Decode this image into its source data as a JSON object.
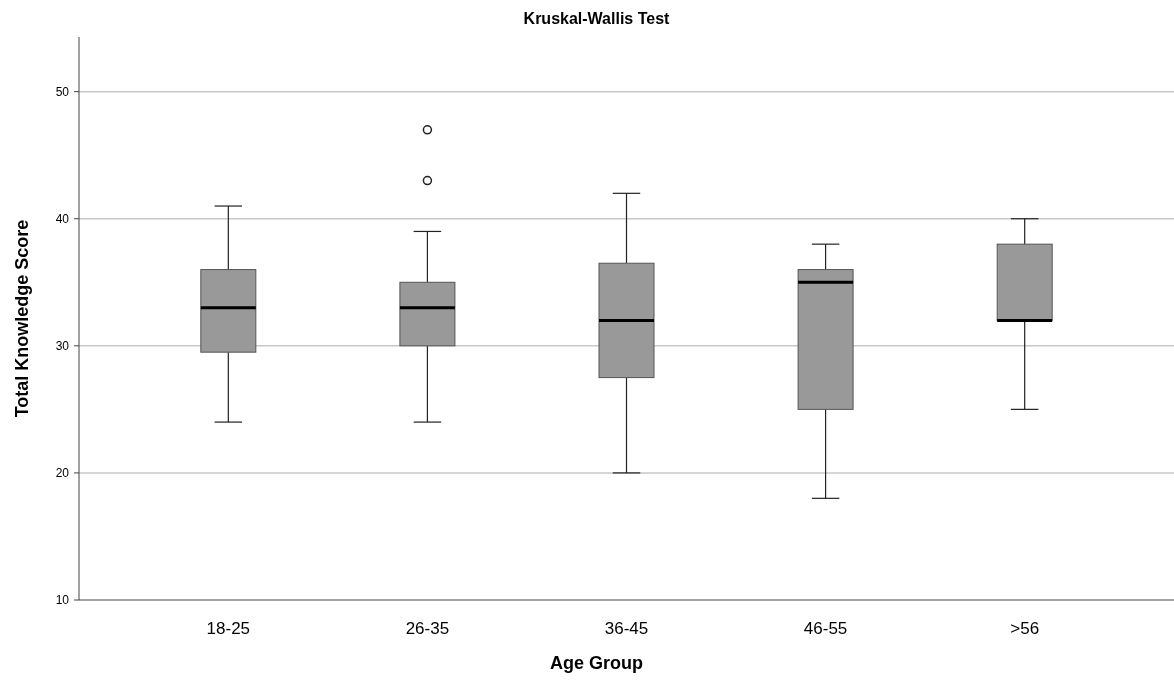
{
  "chart_data": {
    "type": "box",
    "title": "Kruskal-Wallis Test",
    "xlabel": "Age Group",
    "ylabel": "Total Knowledge Score",
    "categories": [
      "18-25",
      "26-35",
      "36-45",
      "46-55",
      ">56"
    ],
    "boxes": [
      {
        "low": 24,
        "q1": 29.5,
        "median": 33,
        "q3": 36,
        "high": 41
      },
      {
        "low": 24,
        "q1": 30,
        "median": 33,
        "q3": 35,
        "high": 39,
        "outliers": [
          43,
          47
        ]
      },
      {
        "low": 20,
        "q1": 27.5,
        "median": 32,
        "q3": 36.5,
        "high": 42
      },
      {
        "low": 18,
        "q1": 25,
        "median": 35,
        "q3": 36,
        "high": 38
      },
      {
        "low": 25,
        "q1": 32,
        "median": 32,
        "q3": 38,
        "high": 40
      }
    ],
    "color": "#999999",
    "ylim": [
      10,
      54.3
    ],
    "yticks": [
      10,
      20,
      30,
      40,
      50
    ],
    "grid": "y"
  }
}
